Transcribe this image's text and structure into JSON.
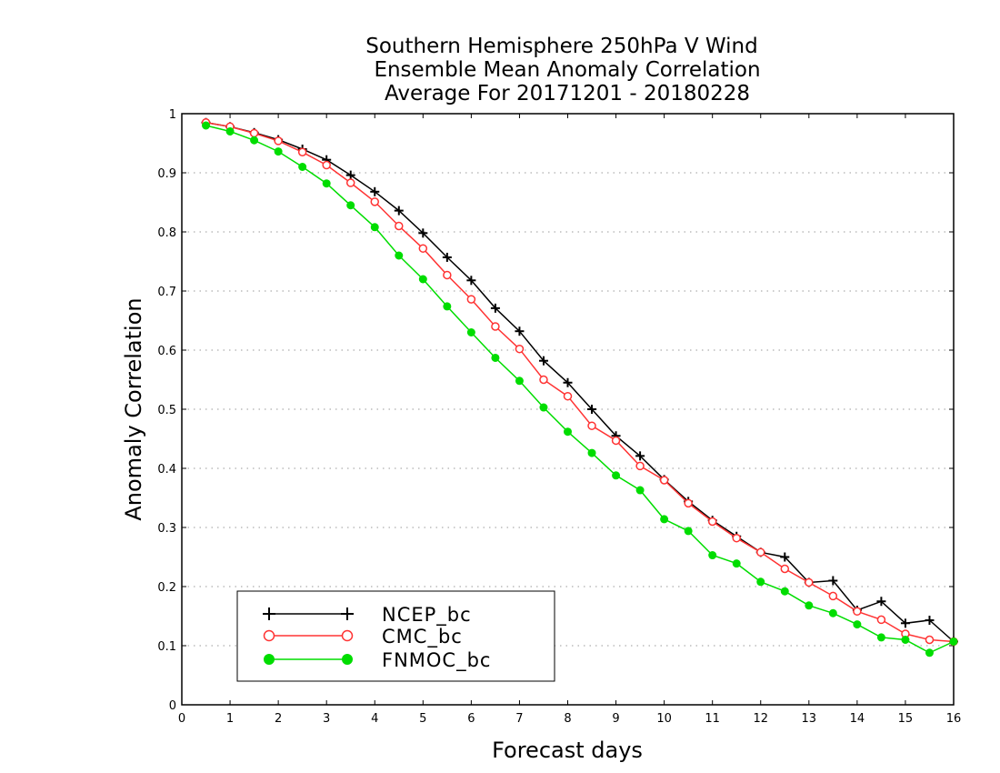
{
  "chart_data": {
    "type": "line",
    "title": [
      "Southern Hemisphere 250hPa V Wind",
      "Ensemble Mean Anomaly Correlation",
      "Average For 20171201 - 20180228"
    ],
    "xlabel": "Forecast days",
    "ylabel": "Anomaly Correlation",
    "xlim": [
      0,
      16
    ],
    "ylim": [
      0,
      1
    ],
    "x_ticks": [
      "0",
      "1",
      "2",
      "3",
      "4",
      "5",
      "6",
      "7",
      "8",
      "9",
      "10",
      "11",
      "12",
      "13",
      "14",
      "15",
      "16"
    ],
    "y_ticks": [
      "0",
      "0.1",
      "0.2",
      "0.3",
      "0.4",
      "0.5",
      "0.6",
      "0.7",
      "0.8",
      "0.9",
      "1"
    ],
    "grid": "horizontal dotted",
    "legend_position": "bottom-left",
    "x": [
      0.5,
      1,
      1.5,
      2,
      2.5,
      3,
      3.5,
      4,
      4.5,
      5,
      5.5,
      6,
      6.5,
      7,
      7.5,
      8,
      8.5,
      9,
      9.5,
      10,
      10.5,
      11,
      11.5,
      12,
      12.5,
      13,
      13.5,
      14,
      14.5,
      15,
      15.5,
      16
    ],
    "series": [
      {
        "name": "NCEP_bc",
        "color": "#000000",
        "marker": "plus",
        "values": [
          0.985,
          0.978,
          0.968,
          0.956,
          0.94,
          0.922,
          0.896,
          0.868,
          0.836,
          0.798,
          0.757,
          0.718,
          0.671,
          0.632,
          0.582,
          0.545,
          0.5,
          0.455,
          0.421,
          0.381,
          0.344,
          0.312,
          0.285,
          0.258,
          0.25,
          0.207,
          0.21,
          0.16,
          0.175,
          0.138,
          0.143,
          0.107
        ]
      },
      {
        "name": "CMC_bc",
        "color": "#ff3333",
        "marker": "open-circle",
        "values": [
          0.985,
          0.978,
          0.967,
          0.954,
          0.935,
          0.913,
          0.883,
          0.851,
          0.81,
          0.772,
          0.727,
          0.686,
          0.64,
          0.602,
          0.55,
          0.522,
          0.472,
          0.447,
          0.404,
          0.38,
          0.341,
          0.31,
          0.282,
          0.258,
          0.23,
          0.207,
          0.184,
          0.158,
          0.144,
          0.12,
          0.11,
          0.107
        ]
      },
      {
        "name": "FNMOC_bc",
        "color": "#00dd00",
        "marker": "filled-circle",
        "values": [
          0.98,
          0.97,
          0.955,
          0.936,
          0.91,
          0.882,
          0.845,
          0.808,
          0.76,
          0.72,
          0.674,
          0.63,
          0.587,
          0.548,
          0.503,
          0.462,
          0.426,
          0.388,
          0.363,
          0.314,
          0.294,
          0.253,
          0.239,
          0.208,
          0.192,
          0.168,
          0.155,
          0.136,
          0.114,
          0.11,
          0.088,
          0.107
        ]
      }
    ]
  }
}
